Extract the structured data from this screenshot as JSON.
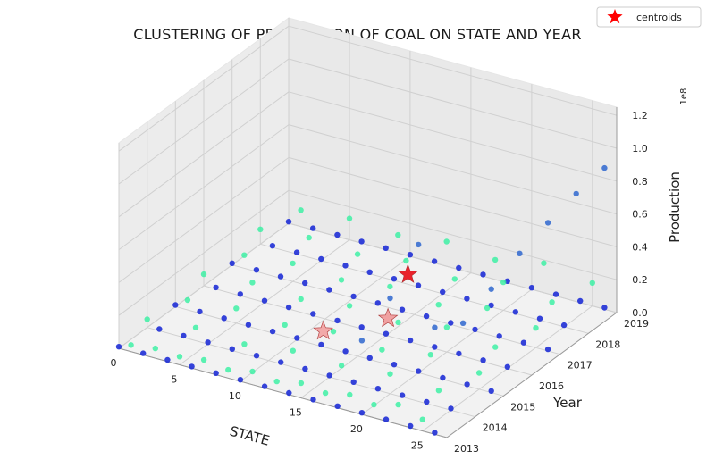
{
  "chart_data": {
    "type": "scatter",
    "title": "CLUSTERING OF PRODUCTION OF COAL ON STATE AND YEAR",
    "xlabel": "STATE",
    "ylabel": "Year",
    "zlabel": "Production",
    "z_exponent": "1e8",
    "xlim": [
      0,
      27
    ],
    "ylim": [
      2013,
      2019
    ],
    "zlim": [
      0,
      1.25
    ],
    "x_ticks": [
      "0",
      "5",
      "10",
      "15",
      "20",
      "25"
    ],
    "y_ticks": [
      "2013",
      "2014",
      "2015",
      "2016",
      "2017",
      "2018",
      "2019"
    ],
    "z_ticks": [
      "0.0",
      "0.2",
      "0.4",
      "0.6",
      "0.8",
      "1.0",
      "1.2"
    ],
    "grid": true,
    "legend_position": "top-right",
    "legend": [
      {
        "label": "centroids",
        "color": "#ff0000",
        "marker": "star"
      }
    ],
    "series": [
      {
        "color": "#1f2fd6",
        "points": [
          [
            0,
            2013,
            0.01
          ],
          [
            2,
            2013,
            0.01
          ],
          [
            4,
            2013,
            0.01
          ],
          [
            6,
            2013,
            0.01
          ],
          [
            8,
            2013,
            0.01
          ],
          [
            10,
            2013,
            0.01
          ],
          [
            12,
            2013,
            0.01
          ],
          [
            14,
            2013,
            0.01
          ],
          [
            16,
            2013,
            0.01
          ],
          [
            18,
            2013,
            0.01
          ],
          [
            20,
            2013,
            0.01
          ],
          [
            22,
            2013,
            0.01
          ],
          [
            24,
            2013,
            0.01
          ],
          [
            26,
            2013,
            0.01
          ],
          [
            1,
            2014,
            0.01
          ],
          [
            3,
            2014,
            0.01
          ],
          [
            5,
            2014,
            0.01
          ],
          [
            7,
            2014,
            0.01
          ],
          [
            9,
            2014,
            0.01
          ],
          [
            11,
            2014,
            0.01
          ],
          [
            13,
            2014,
            0.01
          ],
          [
            15,
            2014,
            0.01
          ],
          [
            17,
            2014,
            0.01
          ],
          [
            19,
            2014,
            0.01
          ],
          [
            21,
            2014,
            0.01
          ],
          [
            23,
            2014,
            0.01
          ],
          [
            25,
            2014,
            0.01
          ],
          [
            0,
            2015,
            0.01
          ],
          [
            2,
            2015,
            0.01
          ],
          [
            4,
            2015,
            0.01
          ],
          [
            6,
            2015,
            0.01
          ],
          [
            8,
            2015,
            0.01
          ],
          [
            10,
            2015,
            0.01
          ],
          [
            12,
            2015,
            0.01
          ],
          [
            14,
            2015,
            0.01
          ],
          [
            16,
            2015,
            0.01
          ],
          [
            18,
            2015,
            0.01
          ],
          [
            20,
            2015,
            0.01
          ],
          [
            22,
            2015,
            0.01
          ],
          [
            24,
            2015,
            0.01
          ],
          [
            26,
            2015,
            0.01
          ],
          [
            1,
            2016,
            0.01
          ],
          [
            3,
            2016,
            0.01
          ],
          [
            5,
            2016,
            0.01
          ],
          [
            7,
            2016,
            0.01
          ],
          [
            9,
            2016,
            0.01
          ],
          [
            11,
            2016,
            0.01
          ],
          [
            13,
            2016,
            0.01
          ],
          [
            15,
            2016,
            0.01
          ],
          [
            17,
            2016,
            0.01
          ],
          [
            19,
            2016,
            0.01
          ],
          [
            21,
            2016,
            0.01
          ],
          [
            23,
            2016,
            0.01
          ],
          [
            25,
            2016,
            0.01
          ],
          [
            0,
            2017,
            0.01
          ],
          [
            2,
            2017,
            0.01
          ],
          [
            4,
            2017,
            0.01
          ],
          [
            6,
            2017,
            0.01
          ],
          [
            8,
            2017,
            0.01
          ],
          [
            10,
            2017,
            0.01
          ],
          [
            12,
            2017,
            0.01
          ],
          [
            14,
            2017,
            0.01
          ],
          [
            16,
            2017,
            0.01
          ],
          [
            18,
            2017,
            0.01
          ],
          [
            20,
            2017,
            0.01
          ],
          [
            22,
            2017,
            0.01
          ],
          [
            24,
            2017,
            0.01
          ],
          [
            26,
            2017,
            0.01
          ],
          [
            1,
            2018,
            0.01
          ],
          [
            3,
            2018,
            0.01
          ],
          [
            5,
            2018,
            0.01
          ],
          [
            7,
            2018,
            0.01
          ],
          [
            9,
            2018,
            0.01
          ],
          [
            11,
            2018,
            0.01
          ],
          [
            13,
            2018,
            0.01
          ],
          [
            15,
            2018,
            0.01
          ],
          [
            17,
            2018,
            0.01
          ],
          [
            19,
            2018,
            0.01
          ],
          [
            21,
            2018,
            0.01
          ],
          [
            23,
            2018,
            0.01
          ],
          [
            25,
            2018,
            0.01
          ],
          [
            0,
            2019,
            0.01
          ],
          [
            2,
            2019,
            0.01
          ],
          [
            4,
            2019,
            0.01
          ],
          [
            6,
            2019,
            0.01
          ],
          [
            8,
            2019,
            0.01
          ],
          [
            10,
            2019,
            0.01
          ],
          [
            12,
            2019,
            0.01
          ],
          [
            14,
            2019,
            0.01
          ],
          [
            16,
            2019,
            0.01
          ],
          [
            18,
            2019,
            0.01
          ],
          [
            20,
            2019,
            0.01
          ],
          [
            22,
            2019,
            0.01
          ],
          [
            24,
            2019,
            0.01
          ],
          [
            26,
            2019,
            0.01
          ]
        ]
      },
      {
        "color": "#3a6fd0",
        "points": [
          [
            26,
            2013,
            0.65
          ],
          [
            26,
            2014,
            0.55
          ],
          [
            26,
            2015,
            0.63
          ],
          [
            26,
            2016,
            0.72
          ],
          [
            26,
            2017,
            0.78
          ],
          [
            26,
            2018,
            0.83
          ],
          [
            26,
            2019,
            0.86
          ],
          [
            20,
            2013,
            0.45
          ],
          [
            20,
            2014,
            0.58
          ],
          [
            20,
            2015,
            0.78
          ]
        ]
      },
      {
        "color": "#33f0a0",
        "points": [
          [
            1,
            2013,
            0.04
          ],
          [
            3,
            2013,
            0.06
          ],
          [
            5,
            2013,
            0.05
          ],
          [
            7,
            2013,
            0.07
          ],
          [
            9,
            2013,
            0.05
          ],
          [
            11,
            2013,
            0.08
          ],
          [
            13,
            2013,
            0.06
          ],
          [
            15,
            2013,
            0.09
          ],
          [
            17,
            2013,
            0.07
          ],
          [
            19,
            2013,
            0.1
          ],
          [
            21,
            2013,
            0.08
          ],
          [
            23,
            2013,
            0.12
          ],
          [
            25,
            2013,
            0.07
          ],
          [
            0,
            2014,
            0.05
          ],
          [
            4,
            2014,
            0.08
          ],
          [
            8,
            2014,
            0.06
          ],
          [
            12,
            2014,
            0.1
          ],
          [
            16,
            2014,
            0.09
          ],
          [
            20,
            2014,
            0.12
          ],
          [
            24,
            2014,
            0.1
          ],
          [
            1,
            2015,
            0.06
          ],
          [
            5,
            2015,
            0.09
          ],
          [
            9,
            2015,
            0.07
          ],
          [
            13,
            2015,
            0.11
          ],
          [
            17,
            2015,
            0.08
          ],
          [
            21,
            2015,
            0.13
          ],
          [
            25,
            2015,
            0.1
          ],
          [
            0,
            2016,
            0.07
          ],
          [
            4,
            2016,
            0.1
          ],
          [
            8,
            2016,
            0.08
          ],
          [
            12,
            2016,
            0.12
          ],
          [
            16,
            2016,
            0.1
          ],
          [
            20,
            2016,
            0.15
          ],
          [
            24,
            2016,
            0.11
          ],
          [
            1,
            2017,
            0.08
          ],
          [
            5,
            2017,
            0.11
          ],
          [
            9,
            2017,
            0.09
          ],
          [
            13,
            2017,
            0.13
          ],
          [
            17,
            2017,
            0.1
          ],
          [
            21,
            2017,
            0.16
          ],
          [
            25,
            2017,
            0.12
          ],
          [
            0,
            2018,
            0.09
          ],
          [
            4,
            2018,
            0.12
          ],
          [
            8,
            2018,
            0.1
          ],
          [
            12,
            2018,
            0.14
          ],
          [
            16,
            2018,
            0.11
          ],
          [
            20,
            2018,
            0.17
          ],
          [
            24,
            2018,
            0.13
          ],
          [
            1,
            2019,
            0.1
          ],
          [
            5,
            2019,
            0.13
          ],
          [
            9,
            2019,
            0.11
          ],
          [
            13,
            2019,
            0.15
          ],
          [
            17,
            2019,
            0.12
          ],
          [
            21,
            2019,
            0.18
          ],
          [
            25,
            2019,
            0.14
          ]
        ]
      }
    ],
    "centroids": [
      {
        "x": 21,
        "y": 2014.2,
        "z": 0.72,
        "color": "#e8101a"
      },
      {
        "x": 14,
        "y": 2016.5,
        "z": 0.02,
        "color": "#f09a9a"
      },
      {
        "x": 11,
        "y": 2015.5,
        "z": 0.01,
        "color": "#f2a3a3"
      }
    ]
  }
}
